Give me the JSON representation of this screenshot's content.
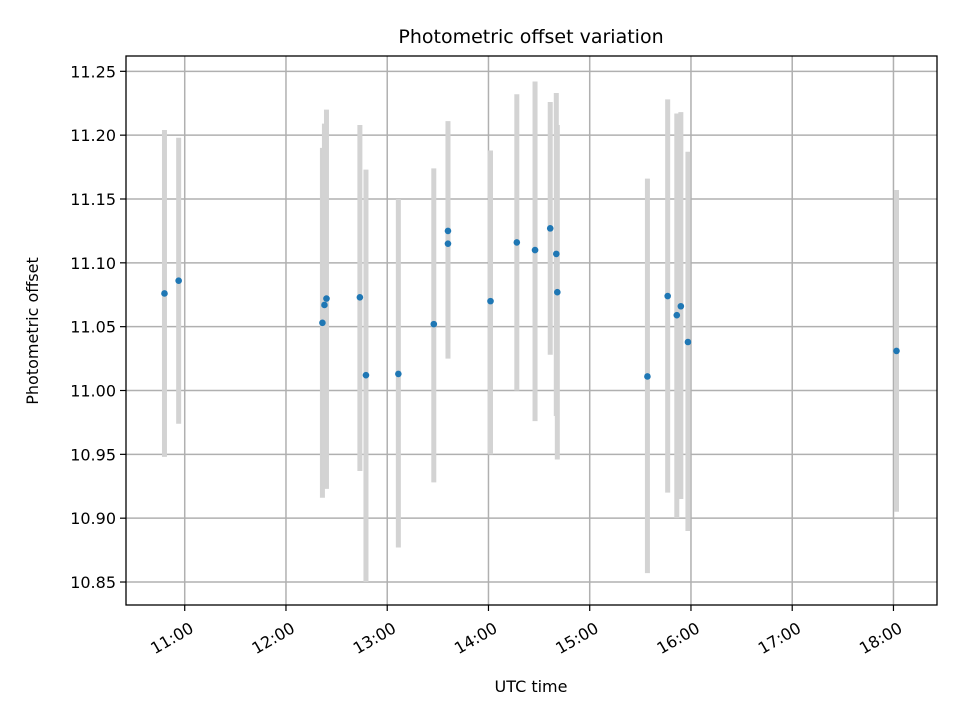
{
  "chart_data": {
    "type": "scatter",
    "title": "Photometric offset variation",
    "xlabel": "UTC time",
    "ylabel": "Photometric offset",
    "grid": true,
    "x_unit": "hours UTC",
    "xlim": [
      10.42,
      18.43
    ],
    "ylim": [
      10.832,
      11.262
    ],
    "x_ticks": [
      {
        "value": 11,
        "label": "11:00"
      },
      {
        "value": 12,
        "label": "12:00"
      },
      {
        "value": 13,
        "label": "13:00"
      },
      {
        "value": 14,
        "label": "14:00"
      },
      {
        "value": 15,
        "label": "15:00"
      },
      {
        "value": 16,
        "label": "16:00"
      },
      {
        "value": 17,
        "label": "17:00"
      },
      {
        "value": 18,
        "label": "18:00"
      }
    ],
    "y_ticks": [
      {
        "value": 10.85,
        "label": "10.85"
      },
      {
        "value": 10.9,
        "label": "10.90"
      },
      {
        "value": 10.95,
        "label": "10.95"
      },
      {
        "value": 11.0,
        "label": "11.00"
      },
      {
        "value": 11.05,
        "label": "11.05"
      },
      {
        "value": 11.1,
        "label": "11.10"
      },
      {
        "value": 11.15,
        "label": "11.15"
      },
      {
        "value": 11.2,
        "label": "11.20"
      },
      {
        "value": 11.25,
        "label": "11.25"
      }
    ],
    "colors": {
      "point": "#1f77b4",
      "errorbar": "#d3d3d3"
    },
    "series": [
      {
        "points": [
          {
            "x": 10.8,
            "y": 11.076,
            "ylow": 10.948,
            "yhigh": 11.204
          },
          {
            "x": 10.94,
            "y": 11.086,
            "ylow": 10.974,
            "yhigh": 11.198
          },
          {
            "x": 12.36,
            "y": 11.053,
            "ylow": 10.916,
            "yhigh": 11.19
          },
          {
            "x": 12.38,
            "y": 11.067,
            "ylow": 10.925,
            "yhigh": 11.209
          },
          {
            "x": 12.4,
            "y": 11.072,
            "ylow": 10.923,
            "yhigh": 11.22
          },
          {
            "x": 12.73,
            "y": 11.073,
            "ylow": 10.937,
            "yhigh": 11.208
          },
          {
            "x": 12.79,
            "y": 11.012,
            "ylow": 10.85,
            "yhigh": 11.173
          },
          {
            "x": 13.11,
            "y": 11.013,
            "ylow": 10.877,
            "yhigh": 11.15
          },
          {
            "x": 13.46,
            "y": 11.052,
            "ylow": 10.928,
            "yhigh": 11.174
          },
          {
            "x": 13.6,
            "y": 11.125,
            "ylow": 11.037,
            "yhigh": 11.211
          },
          {
            "x": 13.6,
            "y": 11.115,
            "ylow": 11.025,
            "yhigh": 11.205
          },
          {
            "x": 14.02,
            "y": 11.07,
            "ylow": 10.95,
            "yhigh": 11.188
          },
          {
            "x": 14.28,
            "y": 11.116,
            "ylow": 11.0,
            "yhigh": 11.232
          },
          {
            "x": 14.46,
            "y": 11.11,
            "ylow": 10.976,
            "yhigh": 11.242
          },
          {
            "x": 14.61,
            "y": 11.127,
            "ylow": 11.028,
            "yhigh": 11.226
          },
          {
            "x": 14.67,
            "y": 11.107,
            "ylow": 10.98,
            "yhigh": 11.233
          },
          {
            "x": 14.68,
            "y": 11.077,
            "ylow": 10.946,
            "yhigh": 11.208
          },
          {
            "x": 15.57,
            "y": 11.011,
            "ylow": 10.857,
            "yhigh": 11.166
          },
          {
            "x": 15.77,
            "y": 11.074,
            "ylow": 10.92,
            "yhigh": 11.228
          },
          {
            "x": 15.86,
            "y": 11.059,
            "ylow": 10.9,
            "yhigh": 11.217
          },
          {
            "x": 15.9,
            "y": 11.066,
            "ylow": 10.915,
            "yhigh": 11.218
          },
          {
            "x": 15.97,
            "y": 11.038,
            "ylow": 10.89,
            "yhigh": 11.187
          },
          {
            "x": 18.03,
            "y": 11.031,
            "ylow": 10.905,
            "yhigh": 11.157
          }
        ]
      }
    ]
  }
}
